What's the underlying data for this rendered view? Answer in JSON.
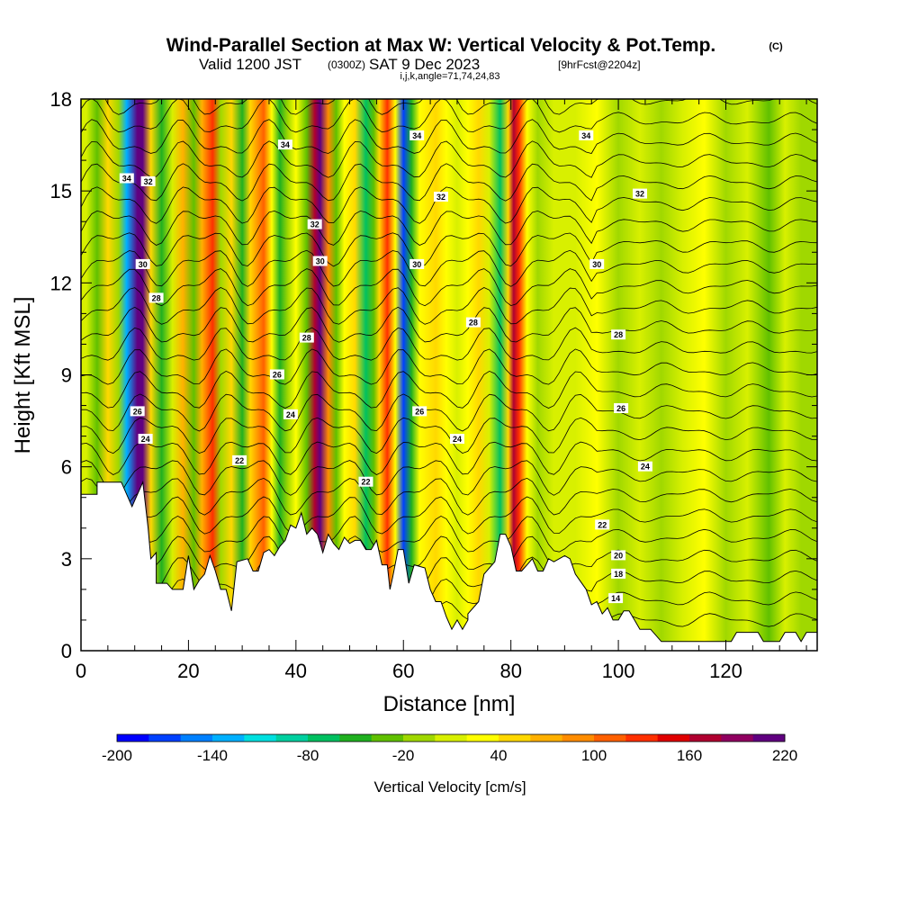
{
  "header": {
    "title": "Wind-Parallel Section at Max W: Vertical Velocity & Pot.Temp.",
    "copyright": "(C)",
    "valid_prefix": "Valid 1200 JST",
    "valid_utc": "(0300Z)",
    "valid_date": "SAT 9 Dec 2023",
    "forecast": "[9hrFcst@2204z]",
    "indices": "i,j,k,angle=71,74,24,83"
  },
  "colorbar": {
    "title": "Vertical Velocity [cm/s]",
    "tick_labels": [
      "-200",
      "-140",
      "-80",
      "-20",
      "40",
      "100",
      "160",
      "220"
    ],
    "colors": [
      "#0000ff",
      "#0040ff",
      "#0080ff",
      "#00b0ff",
      "#00e0e0",
      "#00d0a0",
      "#00c060",
      "#20b020",
      "#60c000",
      "#a0d800",
      "#d8f000",
      "#ffff00",
      "#ffd800",
      "#ffb000",
      "#ff8c00",
      "#ff6000",
      "#ff3000",
      "#e00000",
      "#b00030",
      "#900060",
      "#600080"
    ],
    "min": -200,
    "max": 240,
    "step": 20
  },
  "chart_data": {
    "type": "heatmap",
    "title": "Wind-Parallel Section at Max W: Vertical Velocity & Pot.Temp.",
    "xlabel": "Distance [nm]",
    "ylabel": "Height [Kft MSL]",
    "xlim": [
      0,
      137
    ],
    "ylim": [
      0,
      18
    ],
    "x_ticks": [
      0,
      20,
      40,
      60,
      80,
      100,
      120
    ],
    "x_tick_labels": [
      "0",
      "20",
      "40",
      "60",
      "80",
      "100",
      "120"
    ],
    "y_ticks": [
      0,
      3,
      6,
      9,
      12,
      15,
      18
    ],
    "y_tick_labels": [
      "0",
      "3",
      "6",
      "9",
      "12",
      "15",
      "18"
    ],
    "colorbar_label": "Vertical Velocity [cm/s]",
    "terrain_kft": [
      [
        0,
        5.1
      ],
      [
        3,
        5.1
      ],
      [
        3,
        5.5
      ],
      [
        7.5,
        5.5
      ],
      [
        9.5,
        4.7
      ],
      [
        11.5,
        5.5
      ],
      [
        12.5,
        4.0
      ],
      [
        13,
        3.0
      ],
      [
        14,
        3.2
      ],
      [
        14,
        2.2
      ],
      [
        16,
        2.2
      ],
      [
        17,
        2.0
      ],
      [
        19,
        2.0
      ],
      [
        20,
        3.1
      ],
      [
        21,
        2.0
      ],
      [
        22,
        2.3
      ],
      [
        23,
        2.5
      ],
      [
        24,
        3.1
      ],
      [
        25,
        2.6
      ],
      [
        26,
        2.0
      ],
      [
        27,
        2.0
      ],
      [
        28,
        1.3
      ],
      [
        29,
        2.9
      ],
      [
        31,
        3.0
      ],
      [
        32,
        2.6
      ],
      [
        33,
        2.6
      ],
      [
        34,
        3.2
      ],
      [
        35,
        3.3
      ],
      [
        36,
        3.1
      ],
      [
        37,
        3.4
      ],
      [
        38,
        3.6
      ],
      [
        39,
        4.1
      ],
      [
        40,
        4.0
      ],
      [
        41,
        4.5
      ],
      [
        42,
        3.8
      ],
      [
        43,
        4.0
      ],
      [
        44,
        3.8
      ],
      [
        45,
        3.2
      ],
      [
        46,
        3.8
      ],
      [
        47,
        3.5
      ],
      [
        48,
        3.3
      ],
      [
        49,
        3.7
      ],
      [
        50,
        3.5
      ],
      [
        51,
        3.6
      ],
      [
        52,
        3.6
      ],
      [
        53,
        3.3
      ],
      [
        54,
        3.3
      ],
      [
        55,
        3.6
      ],
      [
        56,
        2.8
      ],
      [
        57,
        2.8
      ],
      [
        57.5,
        2.0
      ],
      [
        58,
        2.4
      ],
      [
        59,
        3.3
      ],
      [
        60,
        3.3
      ],
      [
        61,
        2.2
      ],
      [
        62,
        2.8
      ],
      [
        64,
        2.7
      ],
      [
        65,
        2.0
      ],
      [
        66,
        1.6
      ],
      [
        67,
        1.6
      ],
      [
        68,
        1.1
      ],
      [
        69,
        0.7
      ],
      [
        70,
        1.0
      ],
      [
        71,
        0.7
      ],
      [
        72,
        1.0
      ],
      [
        72,
        1.2
      ],
      [
        74,
        1.6
      ],
      [
        75,
        2.5
      ],
      [
        76,
        2.7
      ],
      [
        77,
        2.9
      ],
      [
        78,
        3.8
      ],
      [
        79,
        3.8
      ],
      [
        80,
        3.4
      ],
      [
        81,
        2.6
      ],
      [
        82,
        2.6
      ],
      [
        84,
        3.0
      ],
      [
        85,
        2.6
      ],
      [
        86,
        2.6
      ],
      [
        87,
        3.0
      ],
      [
        88,
        2.9
      ],
      [
        90,
        3.1
      ],
      [
        91,
        3.0
      ],
      [
        92,
        2.5
      ],
      [
        94,
        2.0
      ],
      [
        95,
        1.5
      ],
      [
        96,
        1.6
      ],
      [
        97,
        1.2
      ],
      [
        98,
        1.4
      ],
      [
        99,
        1.0
      ],
      [
        100,
        1.0
      ],
      [
        101,
        1.3
      ],
      [
        102,
        1.3
      ],
      [
        103,
        1.0
      ],
      [
        104,
        0.7
      ],
      [
        106,
        0.7
      ],
      [
        108,
        0.3
      ],
      [
        121,
        0.3
      ],
      [
        122,
        0.6
      ],
      [
        126,
        0.6
      ],
      [
        127,
        0.3
      ],
      [
        130,
        0.3
      ],
      [
        131,
        0.6
      ],
      [
        133,
        0.6
      ],
      [
        134,
        0.3
      ],
      [
        135,
        0.6
      ],
      [
        137,
        0.6
      ]
    ],
    "bands_note": "vertical velocity bands (cm/s) approximated from the plotted shading",
    "bands": [
      [
        1,
        0
      ],
      [
        3,
        -40
      ],
      [
        5,
        40
      ],
      [
        7,
        -20
      ],
      [
        8.5,
        -140
      ],
      [
        10.5,
        200
      ],
      [
        11.5,
        220
      ],
      [
        13,
        40
      ],
      [
        15,
        -60
      ],
      [
        17,
        0
      ],
      [
        19,
        60
      ],
      [
        21,
        -40
      ],
      [
        22.5,
        60
      ],
      [
        24.5,
        120
      ],
      [
        26,
        -20
      ],
      [
        28,
        40
      ],
      [
        30,
        -60
      ],
      [
        31.5,
        40
      ],
      [
        34,
        100
      ],
      [
        35.5,
        20
      ],
      [
        37,
        -60
      ],
      [
        38.5,
        -20
      ],
      [
        40,
        20
      ],
      [
        42,
        -40
      ],
      [
        43.5,
        160
      ],
      [
        44.5,
        220
      ],
      [
        46,
        80
      ],
      [
        47.5,
        -40
      ],
      [
        49,
        20
      ],
      [
        51,
        40
      ],
      [
        53,
        -80
      ],
      [
        54.5,
        -40
      ],
      [
        55.5,
        40
      ],
      [
        57,
        120
      ],
      [
        58.5,
        20
      ],
      [
        60,
        -180
      ],
      [
        61.5,
        -60
      ],
      [
        63,
        20
      ],
      [
        66,
        40
      ],
      [
        68,
        20
      ],
      [
        70,
        0
      ],
      [
        72,
        20
      ],
      [
        74,
        40
      ],
      [
        76,
        0
      ],
      [
        78,
        -80
      ],
      [
        79.5,
        40
      ],
      [
        80.5,
        160
      ],
      [
        81.5,
        120
      ],
      [
        83,
        20
      ],
      [
        85,
        -20
      ],
      [
        88,
        0
      ],
      [
        92,
        0
      ],
      [
        96,
        20
      ],
      [
        100,
        -20
      ],
      [
        104,
        0
      ],
      [
        108,
        -20
      ],
      [
        112,
        0
      ],
      [
        116,
        20
      ],
      [
        120,
        -20
      ],
      [
        124,
        0
      ],
      [
        128,
        -40
      ],
      [
        131,
        0
      ],
      [
        134,
        -20
      ],
      [
        137,
        -20
      ]
    ],
    "contour_labels": [
      {
        "text": "34",
        "x": 8.5,
        "y": 15.4
      },
      {
        "text": "32",
        "x": 12.5,
        "y": 15.3
      },
      {
        "text": "34",
        "x": 38,
        "y": 16.5
      },
      {
        "text": "34",
        "x": 62.5,
        "y": 16.8
      },
      {
        "text": "34",
        "x": 94,
        "y": 16.8
      },
      {
        "text": "32",
        "x": 43.5,
        "y": 13.9
      },
      {
        "text": "32",
        "x": 67,
        "y": 14.8
      },
      {
        "text": "32",
        "x": 104,
        "y": 14.9
      },
      {
        "text": "30",
        "x": 11.5,
        "y": 12.6
      },
      {
        "text": "30",
        "x": 44.5,
        "y": 12.7
      },
      {
        "text": "30",
        "x": 62.5,
        "y": 12.6
      },
      {
        "text": "30",
        "x": 96,
        "y": 12.6
      },
      {
        "text": "28",
        "x": 14,
        "y": 11.5
      },
      {
        "text": "28",
        "x": 42,
        "y": 10.2
      },
      {
        "text": "28",
        "x": 73,
        "y": 10.7
      },
      {
        "text": "28",
        "x": 100,
        "y": 10.3
      },
      {
        "text": "26",
        "x": 36.5,
        "y": 9.0
      },
      {
        "text": "26",
        "x": 10.5,
        "y": 7.8
      },
      {
        "text": "26",
        "x": 63,
        "y": 7.8
      },
      {
        "text": "26",
        "x": 100.5,
        "y": 7.9
      },
      {
        "text": "24",
        "x": 12,
        "y": 6.9
      },
      {
        "text": "24",
        "x": 39,
        "y": 7.7
      },
      {
        "text": "24",
        "x": 70,
        "y": 6.9
      },
      {
        "text": "24",
        "x": 105,
        "y": 6.0
      },
      {
        "text": "22",
        "x": 29.5,
        "y": 6.2
      },
      {
        "text": "22",
        "x": 53,
        "y": 5.5
      },
      {
        "text": "22",
        "x": 97,
        "y": 4.1
      },
      {
        "text": "20",
        "x": 100,
        "y": 3.1
      },
      {
        "text": "18",
        "x": 100,
        "y": 2.5
      },
      {
        "text": "14",
        "x": 99.5,
        "y": 1.7
      }
    ]
  }
}
